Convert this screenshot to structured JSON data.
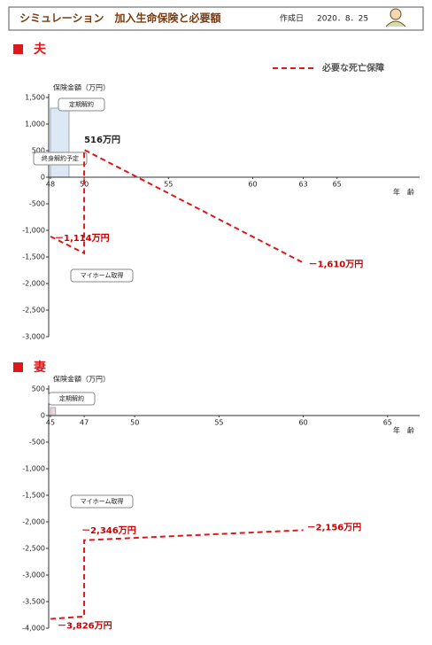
{
  "header": {
    "title": "シミュレーション　加入生命保険と必要額",
    "date_label": "作成日",
    "date": "2020．8．25"
  },
  "chart_data": [
    {
      "type": "line",
      "title": "夫",
      "ylabel": "保険金額（万円）",
      "xlabel": "年　齢",
      "xlim": [
        48,
        69.9
      ],
      "xticks": [
        48,
        50,
        55,
        60,
        63,
        65
      ],
      "ylim": [
        -3000,
        1500
      ],
      "yticks": [
        {
          "value": 1500,
          "label": "1,500"
        },
        {
          "value": 1000,
          "label": "1,000"
        },
        500,
        0,
        -500,
        {
          "value": -1000,
          "label": "-1,000"
        },
        {
          "value": -1500,
          "label": "-1,500"
        },
        {
          "value": -2000,
          "label": "-2,000"
        },
        {
          "value": -2500,
          "label": "-2,500"
        },
        {
          "value": -3000,
          "label": "-3,000"
        }
      ],
      "legend": "top-right",
      "bars": [
        {
          "x0": 48,
          "x1": 49.1,
          "value": 1300,
          "color": "#dce8f4"
        }
      ],
      "annotations": [
        "定期解約",
        "終身解約予定",
        "マイホーム取得"
      ],
      "series": [
        {
          "name": "必要な死亡保障",
          "color": "#e0161b",
          "x": [
            48,
            50,
            50,
            63
          ],
          "values": [
            -1114,
            -1430,
            516,
            -1610
          ],
          "value_labels": [
            "－1,114万円",
            null,
            "516万円",
            "－1,610万円"
          ]
        }
      ]
    },
    {
      "type": "line",
      "title": "妻",
      "ylabel": "保険金額（万円）",
      "xlabel": "年　齢",
      "xlim": [
        45,
        66.9
      ],
      "xticks": [
        45,
        47,
        50,
        55,
        60,
        65
      ],
      "ylim": [
        -4000,
        500
      ],
      "yticks": [
        500,
        0,
        -500,
        {
          "value": -1000,
          "label": "-1,000"
        },
        {
          "value": -1500,
          "label": "-1,500"
        },
        {
          "value": -2000,
          "label": "-2,000"
        },
        {
          "value": -2500,
          "label": "-2,500"
        },
        {
          "value": -3000,
          "label": "-3,000"
        },
        {
          "value": -3500,
          "label": "-3,500"
        },
        {
          "value": -4000,
          "label": "-4,000"
        }
      ],
      "bars": [
        {
          "x0": 45,
          "x1": 45.3,
          "value": 150,
          "color": "#f6d3d3"
        }
      ],
      "annotations": [
        "定期解約",
        "マイホーム取得"
      ],
      "series": [
        {
          "color": "#e0161b",
          "x": [
            45,
            47,
            47,
            60
          ],
          "values": [
            -3826,
            -3780,
            -2346,
            -2156
          ],
          "value_labels": [
            "－3,826万円",
            null,
            "－2,346万円",
            "－2,156万円"
          ]
        }
      ]
    }
  ]
}
